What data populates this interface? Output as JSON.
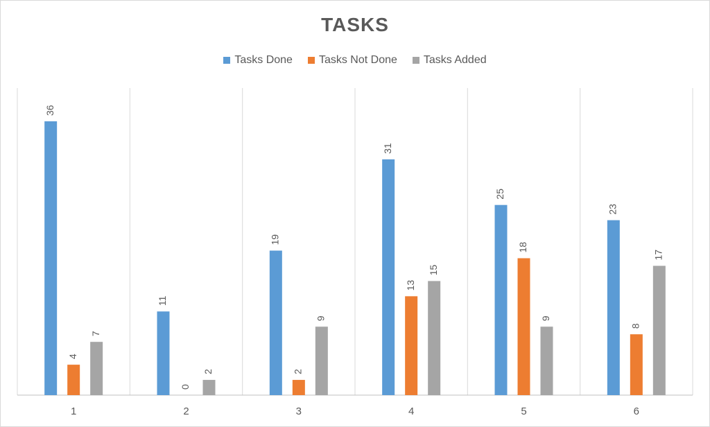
{
  "chart_data": {
    "type": "bar",
    "title": "TASKS",
    "categories": [
      "1",
      "2",
      "3",
      "4",
      "5",
      "6"
    ],
    "series": [
      {
        "name": "Tasks Done",
        "color": "#5b9bd5",
        "values": [
          36,
          11,
          19,
          31,
          25,
          23
        ]
      },
      {
        "name": "Tasks Not Done",
        "color": "#ed7d31",
        "values": [
          4,
          0,
          2,
          13,
          18,
          8
        ]
      },
      {
        "name": "Tasks Added",
        "color": "#a5a5a5",
        "values": [
          7,
          2,
          9,
          15,
          9,
          17
        ]
      }
    ],
    "ylim": [
      0,
      40
    ],
    "grid": "vertical category separators",
    "legend": "top"
  }
}
